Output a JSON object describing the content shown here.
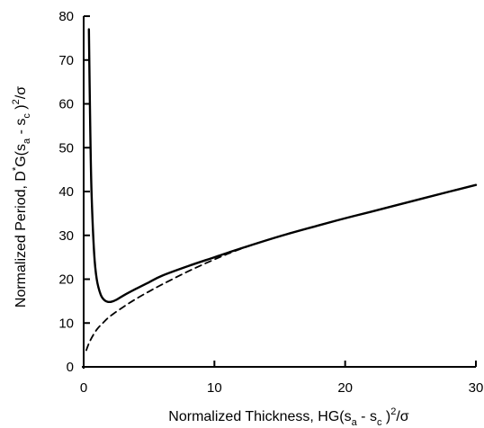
{
  "chart_data": {
    "type": "line",
    "xlabel": {
      "base": "Normalized Thickness, HG(s",
      "sub1": "a",
      "mid": " - s",
      "sub2": "c",
      "close": " )",
      "sup": "2",
      "tail": "/σ"
    },
    "ylabel": {
      "base": "Normalized Period, D",
      "sup1": "*",
      "pre": "G(s",
      "sub1": "a",
      "mid": " - s",
      "sub2": "c",
      "close": " )",
      "sup2": "2",
      "tail": "/σ"
    },
    "xlim": [
      0,
      30
    ],
    "ylim": [
      0,
      80
    ],
    "xticks": [
      0,
      10,
      20,
      30
    ],
    "yticks": [
      0,
      10,
      20,
      30,
      40,
      50,
      60,
      70,
      80
    ],
    "series": [
      {
        "style": "solid",
        "x": [
          0.4,
          0.5,
          0.6,
          0.8,
          1.0,
          1.3,
          1.6,
          2.0,
          2.5,
          3.0,
          4.0,
          5.0,
          6.0,
          8.0,
          10.0,
          12.0,
          15.0,
          18.0,
          20.0,
          22.0,
          25.0,
          28.0,
          30.0
        ],
        "y": [
          77.0,
          55.0,
          40.0,
          26.0,
          20.0,
          16.5,
          15.2,
          14.8,
          15.3,
          16.2,
          17.8,
          19.3,
          20.8,
          23.0,
          25.0,
          27.0,
          29.8,
          32.3,
          33.9,
          35.4,
          37.7,
          40.0,
          41.5
        ]
      },
      {
        "style": "dashed",
        "x": [
          0.2,
          0.5,
          1.0,
          1.5,
          2.0,
          3.0,
          4.0,
          5.0,
          6.0,
          8.0,
          10.0,
          12.0,
          15.0,
          18.0,
          20.0,
          22.0,
          25.0,
          28.0,
          30.0
        ],
        "y": [
          3.8,
          6.0,
          8.5,
          10.1,
          11.5,
          13.6,
          15.5,
          17.2,
          18.8,
          21.8,
          24.5,
          26.9,
          29.8,
          32.3,
          33.9,
          35.4,
          37.7,
          40.0,
          41.5
        ]
      }
    ]
  }
}
